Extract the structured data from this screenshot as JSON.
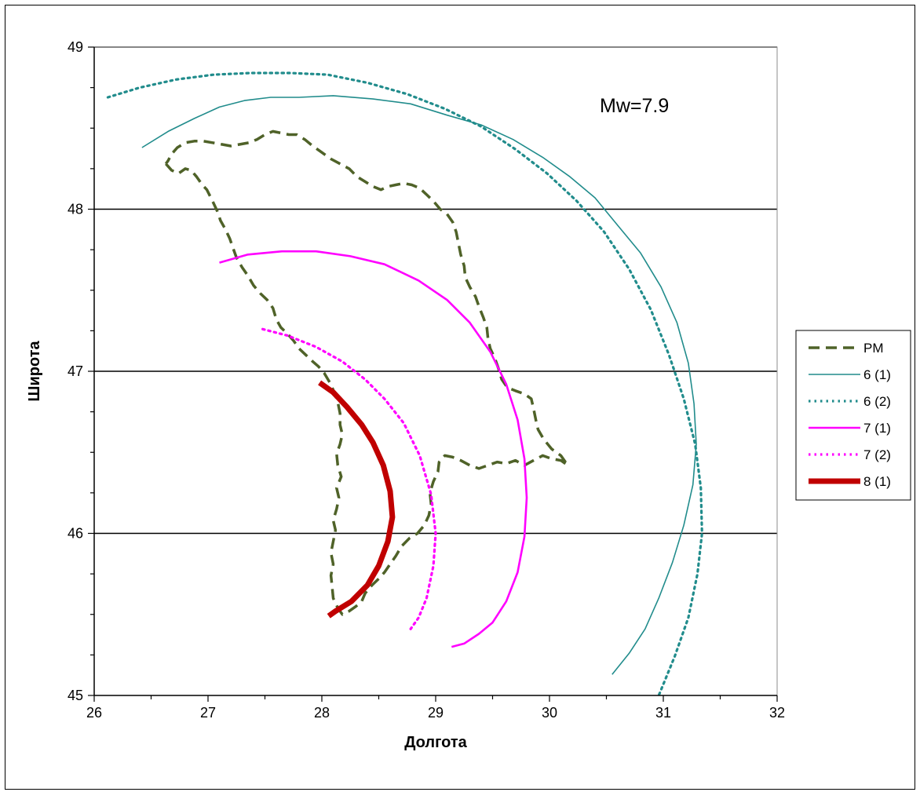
{
  "chart_data": {
    "type": "line",
    "xlabel": "Долгота",
    "ylabel": "Широта",
    "xlim": [
      26,
      32
    ],
    "ylim": [
      45,
      49
    ],
    "x_ticks": [
      26,
      27,
      28,
      29,
      30,
      31,
      32
    ],
    "y_ticks": [
      45,
      46,
      47,
      48,
      49
    ],
    "grid": "horizontal",
    "legend_position": "right",
    "annotation": "Mw=7.9",
    "series": [
      {
        "name": "PM",
        "color": "#4f6228",
        "style": "dashed",
        "points": [
          [
            26.63,
            48.28
          ],
          [
            26.68,
            48.24
          ],
          [
            26.74,
            48.22
          ],
          [
            26.8,
            48.25
          ],
          [
            26.85,
            48.24
          ],
          [
            26.9,
            48.2
          ],
          [
            26.95,
            48.15
          ],
          [
            26.99,
            48.12
          ],
          [
            27.04,
            48.05
          ],
          [
            27.08,
            47.99
          ],
          [
            27.11,
            47.93
          ],
          [
            27.15,
            47.88
          ],
          [
            27.19,
            47.82
          ],
          [
            27.22,
            47.76
          ],
          [
            27.25,
            47.7
          ],
          [
            27.3,
            47.64
          ],
          [
            27.35,
            47.59
          ],
          [
            27.4,
            47.53
          ],
          [
            27.46,
            47.48
          ],
          [
            27.52,
            47.44
          ],
          [
            27.57,
            47.39
          ],
          [
            27.6,
            47.32
          ],
          [
            27.64,
            47.27
          ],
          [
            27.7,
            47.23
          ],
          [
            27.75,
            47.19
          ],
          [
            27.8,
            47.14
          ],
          [
            27.86,
            47.1
          ],
          [
            27.92,
            47.06
          ],
          [
            27.97,
            47.03
          ],
          [
            28.02,
            46.99
          ],
          [
            28.07,
            46.93
          ],
          [
            28.11,
            46.87
          ],
          [
            28.14,
            46.81
          ],
          [
            28.16,
            46.74
          ],
          [
            28.16,
            46.67
          ],
          [
            28.18,
            46.61
          ],
          [
            28.16,
            46.55
          ],
          [
            28.13,
            46.49
          ],
          [
            28.14,
            46.42
          ],
          [
            28.17,
            46.35
          ],
          [
            28.13,
            46.28
          ],
          [
            28.15,
            46.22
          ],
          [
            28.13,
            46.15
          ],
          [
            28.1,
            46.08
          ],
          [
            28.12,
            46.02
          ],
          [
            28.1,
            45.95
          ],
          [
            28.08,
            45.88
          ],
          [
            28.1,
            45.81
          ],
          [
            28.08,
            45.74
          ],
          [
            28.09,
            45.67
          ],
          [
            28.1,
            45.6
          ],
          [
            28.14,
            45.54
          ],
          [
            28.18,
            45.5
          ],
          [
            28.24,
            45.52
          ],
          [
            28.3,
            45.55
          ],
          [
            28.35,
            45.58
          ],
          [
            28.38,
            45.63
          ],
          [
            28.44,
            45.68
          ],
          [
            28.5,
            45.72
          ],
          [
            28.55,
            45.76
          ],
          [
            28.6,
            45.81
          ],
          [
            28.65,
            45.86
          ],
          [
            28.7,
            45.92
          ],
          [
            28.77,
            45.97
          ],
          [
            28.84,
            46.0
          ],
          [
            28.9,
            46.05
          ],
          [
            28.94,
            46.11
          ],
          [
            28.96,
            46.18
          ],
          [
            28.95,
            46.25
          ],
          [
            28.98,
            46.32
          ],
          [
            29.02,
            46.38
          ],
          [
            29.03,
            46.44
          ],
          [
            29.08,
            46.48
          ],
          [
            29.15,
            46.47
          ],
          [
            29.22,
            46.45
          ],
          [
            29.3,
            46.42
          ],
          [
            29.38,
            46.4
          ],
          [
            29.46,
            46.42
          ],
          [
            29.54,
            46.44
          ],
          [
            29.62,
            46.43
          ],
          [
            29.7,
            46.45
          ],
          [
            29.78,
            46.42
          ],
          [
            29.86,
            46.45
          ],
          [
            29.94,
            46.48
          ],
          [
            30.02,
            46.46
          ],
          [
            30.1,
            46.45
          ],
          [
            30.16,
            46.42
          ],
          [
            30.1,
            46.48
          ],
          [
            30.02,
            46.52
          ],
          [
            29.95,
            46.58
          ],
          [
            29.9,
            46.64
          ],
          [
            29.88,
            46.7
          ],
          [
            29.86,
            46.77
          ],
          [
            29.84,
            46.83
          ],
          [
            29.78,
            46.86
          ],
          [
            29.7,
            46.88
          ],
          [
            29.63,
            46.9
          ],
          [
            29.58,
            46.95
          ],
          [
            29.55,
            47.02
          ],
          [
            29.52,
            47.08
          ],
          [
            29.48,
            47.14
          ],
          [
            29.46,
            47.2
          ],
          [
            29.45,
            47.27
          ],
          [
            29.42,
            47.33
          ],
          [
            29.38,
            47.4
          ],
          [
            29.35,
            47.46
          ],
          [
            29.3,
            47.52
          ],
          [
            29.26,
            47.58
          ],
          [
            29.25,
            47.65
          ],
          [
            29.22,
            47.72
          ],
          [
            29.2,
            47.79
          ],
          [
            29.18,
            47.86
          ],
          [
            29.15,
            47.92
          ],
          [
            29.1,
            47.97
          ],
          [
            29.04,
            48.0
          ],
          [
            28.98,
            48.05
          ],
          [
            28.92,
            48.09
          ],
          [
            28.86,
            48.13
          ],
          [
            28.79,
            48.15
          ],
          [
            28.72,
            48.16
          ],
          [
            28.65,
            48.15
          ],
          [
            28.58,
            48.14
          ],
          [
            28.52,
            48.12
          ],
          [
            28.45,
            48.14
          ],
          [
            28.38,
            48.17
          ],
          [
            28.31,
            48.2
          ],
          [
            28.24,
            48.25
          ],
          [
            28.16,
            48.28
          ],
          [
            28.08,
            48.31
          ],
          [
            28.0,
            48.35
          ],
          [
            27.92,
            48.39
          ],
          [
            27.85,
            48.43
          ],
          [
            27.78,
            48.46
          ],
          [
            27.71,
            48.46
          ],
          [
            27.64,
            48.47
          ],
          [
            27.57,
            48.48
          ],
          [
            27.5,
            48.46
          ],
          [
            27.43,
            48.43
          ],
          [
            27.36,
            48.41
          ],
          [
            27.28,
            48.4
          ],
          [
            27.2,
            48.39
          ],
          [
            27.12,
            48.4
          ],
          [
            27.04,
            48.41
          ],
          [
            26.96,
            48.42
          ],
          [
            26.88,
            48.42
          ],
          [
            26.8,
            48.41
          ],
          [
            26.73,
            48.38
          ],
          [
            26.68,
            48.34
          ],
          [
            26.65,
            48.3
          ],
          [
            26.63,
            48.28
          ]
        ]
      },
      {
        "name": "6 (1)",
        "color": "#218c8c",
        "style": "solid-thin",
        "points": [
          [
            26.42,
            48.38
          ],
          [
            26.65,
            48.48
          ],
          [
            26.88,
            48.56
          ],
          [
            27.1,
            48.63
          ],
          [
            27.32,
            48.67
          ],
          [
            27.55,
            48.69
          ],
          [
            27.8,
            48.69
          ],
          [
            28.1,
            48.7
          ],
          [
            28.45,
            48.68
          ],
          [
            28.78,
            48.65
          ],
          [
            29.1,
            48.58
          ],
          [
            29.4,
            48.52
          ],
          [
            29.68,
            48.43
          ],
          [
            29.94,
            48.32
          ],
          [
            30.18,
            48.2
          ],
          [
            30.4,
            48.07
          ],
          [
            30.6,
            47.9
          ],
          [
            30.8,
            47.73
          ],
          [
            30.98,
            47.52
          ],
          [
            31.12,
            47.3
          ],
          [
            31.22,
            47.05
          ],
          [
            31.27,
            46.8
          ],
          [
            31.29,
            46.55
          ],
          [
            31.26,
            46.3
          ],
          [
            31.18,
            46.05
          ],
          [
            31.08,
            45.82
          ],
          [
            30.96,
            45.6
          ],
          [
            30.84,
            45.41
          ],
          [
            30.7,
            45.26
          ],
          [
            30.55,
            45.13
          ]
        ]
      },
      {
        "name": "6 (2)",
        "color": "#218c8c",
        "style": "dotted",
        "points": [
          [
            26.12,
            48.69
          ],
          [
            26.4,
            48.75
          ],
          [
            26.72,
            48.8
          ],
          [
            27.05,
            48.83
          ],
          [
            27.38,
            48.84
          ],
          [
            27.72,
            48.84
          ],
          [
            28.05,
            48.83
          ],
          [
            28.4,
            48.78
          ],
          [
            28.75,
            48.71
          ],
          [
            29.08,
            48.62
          ],
          [
            29.4,
            48.51
          ],
          [
            29.7,
            48.37
          ],
          [
            29.98,
            48.22
          ],
          [
            30.24,
            48.05
          ],
          [
            30.48,
            47.86
          ],
          [
            30.7,
            47.63
          ],
          [
            30.89,
            47.38
          ],
          [
            31.05,
            47.1
          ],
          [
            31.18,
            46.83
          ],
          [
            31.28,
            46.55
          ],
          [
            31.33,
            46.28
          ],
          [
            31.34,
            46.0
          ],
          [
            31.3,
            45.75
          ],
          [
            31.22,
            45.48
          ],
          [
            31.1,
            45.24
          ],
          [
            30.96,
            45.0
          ]
        ]
      },
      {
        "name": "7 (1)",
        "color": "#ff00ff",
        "style": "solid",
        "points": [
          [
            27.1,
            47.67
          ],
          [
            27.35,
            47.72
          ],
          [
            27.65,
            47.74
          ],
          [
            27.95,
            47.74
          ],
          [
            28.25,
            47.71
          ],
          [
            28.55,
            47.66
          ],
          [
            28.85,
            47.56
          ],
          [
            29.1,
            47.44
          ],
          [
            29.3,
            47.3
          ],
          [
            29.48,
            47.12
          ],
          [
            29.62,
            46.92
          ],
          [
            29.72,
            46.7
          ],
          [
            29.78,
            46.46
          ],
          [
            29.8,
            46.22
          ],
          [
            29.78,
            45.98
          ],
          [
            29.72,
            45.76
          ],
          [
            29.62,
            45.58
          ],
          [
            29.5,
            45.45
          ],
          [
            29.38,
            45.38
          ],
          [
            29.25,
            45.32
          ],
          [
            29.14,
            45.3
          ]
        ]
      },
      {
        "name": "7 (2)",
        "color": "#ff00ff",
        "style": "dotted",
        "points": [
          [
            27.48,
            47.26
          ],
          [
            27.7,
            47.22
          ],
          [
            27.95,
            47.15
          ],
          [
            28.18,
            47.06
          ],
          [
            28.38,
            46.95
          ],
          [
            28.55,
            46.83
          ],
          [
            28.72,
            46.68
          ],
          [
            28.86,
            46.48
          ],
          [
            28.96,
            46.24
          ],
          [
            29.0,
            46.0
          ],
          [
            28.98,
            45.8
          ],
          [
            28.92,
            45.6
          ],
          [
            28.85,
            45.48
          ],
          [
            28.78,
            45.41
          ]
        ]
      },
      {
        "name": "8 (1)",
        "color": "#c00000",
        "style": "solid-thick",
        "points": [
          [
            27.98,
            46.93
          ],
          [
            28.1,
            46.87
          ],
          [
            28.22,
            46.78
          ],
          [
            28.35,
            46.67
          ],
          [
            28.45,
            46.56
          ],
          [
            28.54,
            46.42
          ],
          [
            28.6,
            46.26
          ],
          [
            28.62,
            46.1
          ],
          [
            28.58,
            45.95
          ],
          [
            28.5,
            45.8
          ],
          [
            28.4,
            45.68
          ],
          [
            28.26,
            45.58
          ],
          [
            28.12,
            45.52
          ],
          [
            28.06,
            45.49
          ]
        ]
      }
    ]
  }
}
